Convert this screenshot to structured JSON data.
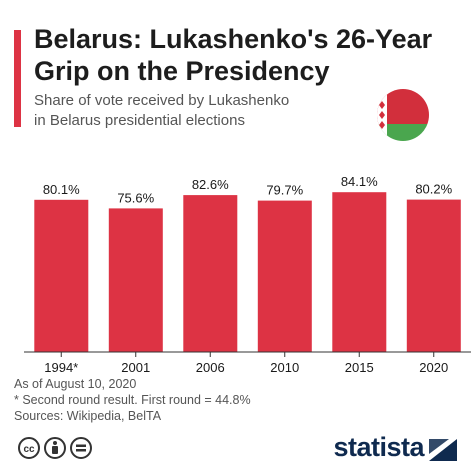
{
  "header": {
    "title_line1": "Belarus: Lukashenko's 26-Year",
    "title_line2": "Grip on the Presidency",
    "subtitle_line1": "Share of vote received by Lukashenko",
    "subtitle_line2": "in Belarus presidential elections"
  },
  "colors": {
    "accent": "#dd3344",
    "bar": "#dd3344",
    "flag_red": "#d22f3c",
    "flag_green": "#4aa64e",
    "brand": "#0f2a4f"
  },
  "chart_data": {
    "type": "bar",
    "categories": [
      "1994*",
      "2001",
      "2006",
      "2010",
      "2015",
      "2020"
    ],
    "values": [
      80.1,
      75.6,
      82.6,
      79.7,
      84.1,
      80.2
    ],
    "data_labels": [
      "80.1%",
      "75.6%",
      "82.6%",
      "79.7%",
      "84.1%",
      "80.2%"
    ],
    "title": "",
    "xlabel": "",
    "ylabel": "",
    "ylim": [
      0,
      100
    ],
    "grid": false,
    "legend": "none"
  },
  "notes": {
    "line1": "As of August 10, 2020",
    "line2": "* Second round result. First round = 44.8%",
    "line3": "Sources: Wikipedia, BelTA"
  },
  "footer": {
    "brand": "statista",
    "icons": [
      "cc-icon",
      "by-icon",
      "equals-icon"
    ]
  }
}
